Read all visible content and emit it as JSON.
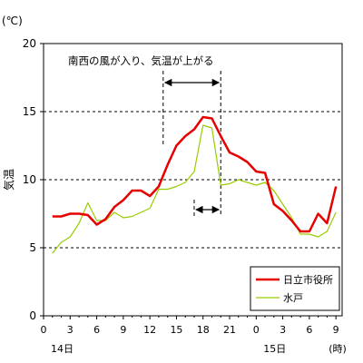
{
  "chart_data": {
    "type": "line",
    "title": "",
    "ylabel": "気温",
    "yunit": "(℃)",
    "xunit": "(時)",
    "ylim": [
      0,
      20
    ],
    "yticks": [
      0,
      5,
      10,
      15,
      20
    ],
    "xticks": [
      "0",
      "3",
      "6",
      "9",
      "12",
      "15",
      "18",
      "21",
      "0",
      "3",
      "6",
      "9"
    ],
    "day_labels": [
      {
        "label": "14日",
        "hour": 0
      },
      {
        "label": "15日",
        "hour": 24
      }
    ],
    "grid_y": true,
    "legend_position": "bottom-right",
    "annotation": {
      "text": "南西の風が入り、気温が上がる",
      "span_hitachi": [
        13.5,
        20
      ],
      "span_mito": [
        17,
        20
      ]
    },
    "series": [
      {
        "name": "日立市役所",
        "color": "#e60000",
        "x": [
          1,
          2,
          3,
          4,
          5,
          6,
          7,
          8,
          9,
          10,
          11,
          12,
          13,
          14,
          15,
          16,
          17,
          18,
          19,
          20,
          21,
          22,
          23,
          24,
          25,
          26,
          27,
          28,
          29,
          30,
          31,
          32,
          33
        ],
        "values": [
          7.3,
          7.3,
          7.5,
          7.5,
          7.4,
          6.7,
          7.1,
          8.0,
          8.5,
          9.2,
          9.2,
          8.8,
          9.5,
          11.1,
          12.5,
          13.2,
          13.7,
          14.6,
          14.5,
          13.2,
          12.0,
          11.7,
          11.3,
          10.6,
          10.5,
          8.2,
          7.7,
          7.0,
          6.2,
          6.2,
          7.5,
          6.8,
          9.5
        ]
      },
      {
        "name": "水戸",
        "color": "#99cc00",
        "x": [
          1,
          2,
          3,
          4,
          5,
          6,
          7,
          8,
          9,
          10,
          11,
          12,
          13,
          14,
          15,
          16,
          17,
          18,
          19,
          20,
          21,
          22,
          23,
          24,
          25,
          26,
          27,
          28,
          29,
          30,
          31,
          32,
          33
        ],
        "values": [
          4.6,
          5.4,
          5.8,
          6.8,
          8.3,
          7.0,
          7.0,
          7.6,
          7.2,
          7.3,
          7.6,
          7.9,
          9.3,
          9.3,
          9.5,
          9.8,
          10.6,
          14.0,
          13.8,
          9.6,
          9.7,
          10.0,
          9.8,
          9.6,
          9.8,
          9.2,
          8.2,
          7.2,
          6.0,
          6.0,
          5.8,
          6.2,
          7.6
        ]
      }
    ]
  }
}
